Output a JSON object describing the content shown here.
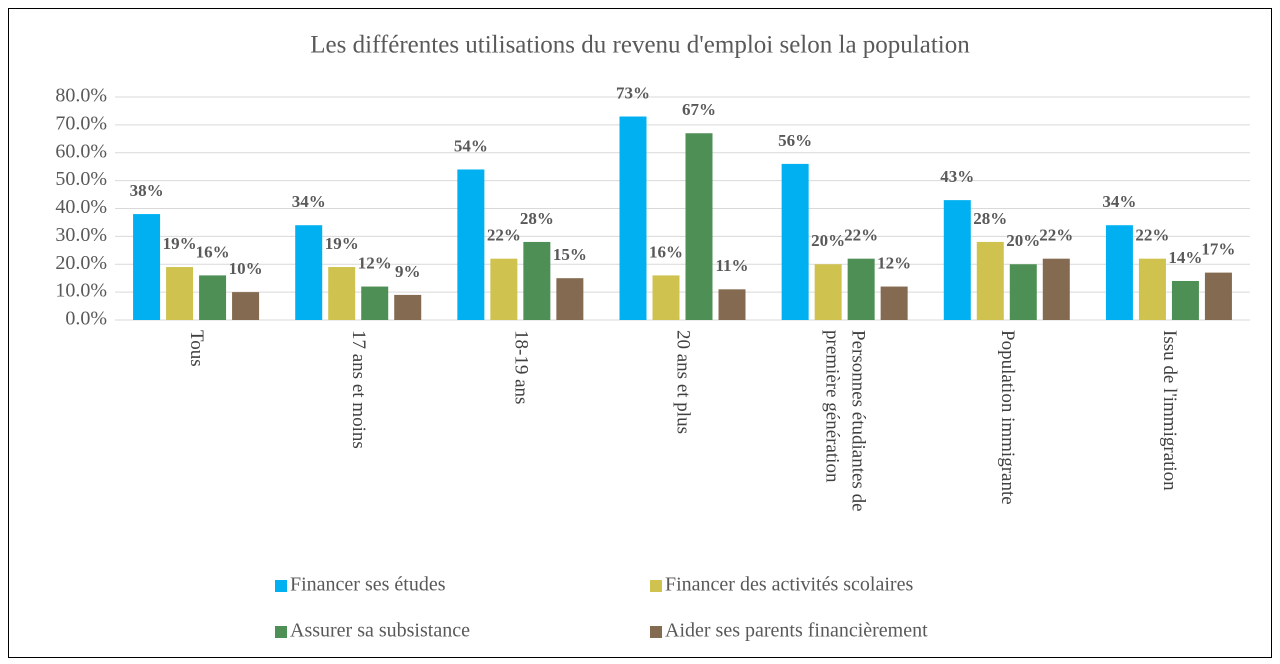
{
  "chart_data": {
    "type": "bar",
    "title": "Les différentes utilisations du revenu d'emploi selon la population",
    "categories": [
      "Tous",
      "17 ans et moins",
      "18-19 ans",
      "20 ans et plus",
      "Personnes étudiantes de première génération",
      "Population immigrante",
      "Issu de l'immigration"
    ],
    "series": [
      {
        "name": "Financer ses études",
        "color": "#00b0f0",
        "values": [
          38,
          34,
          54,
          73,
          56,
          43,
          34
        ],
        "value_labels": [
          "38%",
          "34%",
          "54%",
          "73%",
          "56%",
          "43%",
          "34%"
        ]
      },
      {
        "name": "Financer des activités scolaires",
        "color": "#cfc24f",
        "values": [
          19,
          19,
          22,
          16,
          20,
          28,
          22
        ],
        "value_labels": [
          "19%",
          "19%",
          "22%",
          "16%",
          "20%",
          "28%",
          "22%"
        ]
      },
      {
        "name": "Assurer sa subsistance",
        "color": "#4e8f55",
        "values": [
          16,
          12,
          28,
          67,
          22,
          20,
          14
        ],
        "value_labels": [
          "16%",
          "12%",
          "28%",
          "67%",
          "22%",
          "20%",
          "14%"
        ]
      },
      {
        "name": "Aider ses parents financièrement",
        "color": "#846a50",
        "values": [
          10,
          9,
          15,
          11,
          12,
          22,
          17
        ],
        "value_labels": [
          "10%",
          "9%",
          "15%",
          "11%",
          "12%",
          "22%",
          "17%"
        ]
      }
    ],
    "ylim": [
      0,
      80
    ],
    "yticks": [
      {
        "value": 0,
        "label": "0.0%"
      },
      {
        "value": 10,
        "label": "10.0%"
      },
      {
        "value": 20,
        "label": "20.0%"
      },
      {
        "value": 30,
        "label": "30.0%"
      },
      {
        "value": 40,
        "label": "40.0%"
      },
      {
        "value": 50,
        "label": "50.0%"
      },
      {
        "value": 60,
        "label": "60.0%"
      },
      {
        "value": 70,
        "label": "70.0%"
      },
      {
        "value": 80,
        "label": "80.0%"
      }
    ],
    "grid": true
  }
}
